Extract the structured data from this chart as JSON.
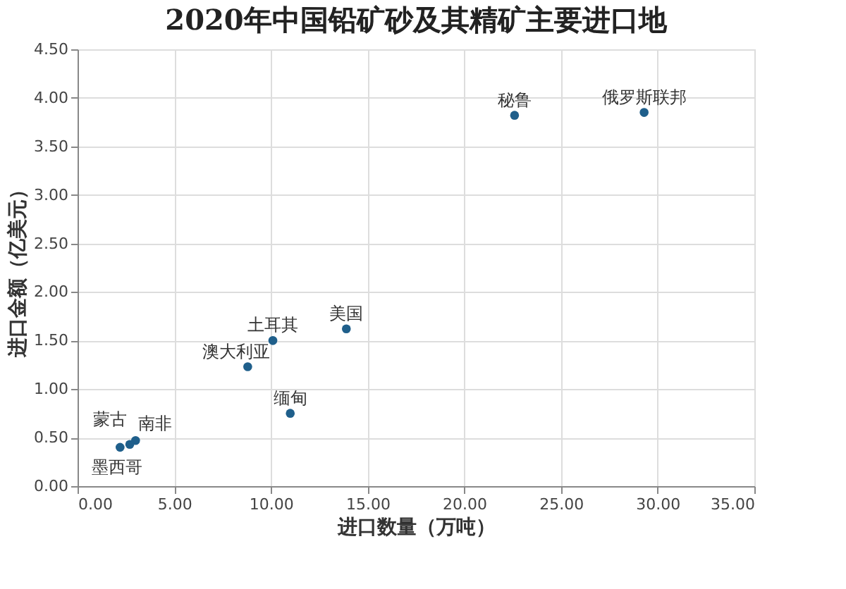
{
  "chart_data": {
    "type": "scatter",
    "title": "2020年中国铅矿砂及其精矿主要进口地",
    "xlabel": "进口数量（万吨）",
    "ylabel": "进口金额（亿美元）",
    "x": [
      29.3,
      22.6,
      13.9,
      10.1,
      8.8,
      11.0,
      3.0,
      2.7,
      2.2
    ],
    "series": [
      {
        "color": "#1f5f8b",
        "values": [
          3.85,
          3.82,
          1.62,
          1.5,
          1.23,
          0.75,
          0.47,
          0.43,
          0.4
        ]
      }
    ],
    "annotations": [
      {
        "text": "俄罗斯联邦",
        "x": 29.3,
        "y": 3.85
      },
      {
        "text": "秘鲁",
        "x": 22.6,
        "y": 3.82
      },
      {
        "text": "美国",
        "x": 13.9,
        "y": 1.62
      },
      {
        "text": "土耳其",
        "x": 10.1,
        "y": 1.5
      },
      {
        "text": "澳大利亚",
        "x": 8.8,
        "y": 1.23
      },
      {
        "text": "缅甸",
        "x": 11.0,
        "y": 0.75
      },
      {
        "text": "南非",
        "x": 3.0,
        "y": 0.47
      },
      {
        "text": "蒙古",
        "x": 2.7,
        "y": 0.43
      },
      {
        "text": "墨西哥",
        "x": 2.2,
        "y": 0.4
      }
    ],
    "xlim": [
      0,
      35
    ],
    "ylim": [
      0,
      4.5
    ],
    "xticks": [
      {
        "value": 0,
        "label": "0.00"
      },
      {
        "value": 5,
        "label": "5.00"
      },
      {
        "value": 10,
        "label": "10.00"
      },
      {
        "value": 15,
        "label": "15.00"
      },
      {
        "value": 20,
        "label": "20.00"
      },
      {
        "value": 25,
        "label": "25.00"
      },
      {
        "value": 30,
        "label": "30.00"
      },
      {
        "value": 35,
        "label": "35.00"
      }
    ],
    "yticks": [
      {
        "value": 0,
        "label": "0.00"
      },
      {
        "value": 0.5,
        "label": "0.50"
      },
      {
        "value": 1,
        "label": "1.00"
      },
      {
        "value": 1.5,
        "label": "1.50"
      },
      {
        "value": 2,
        "label": "2.00"
      },
      {
        "value": 2.5,
        "label": "2.50"
      },
      {
        "value": 3,
        "label": "3.00"
      },
      {
        "value": 3.5,
        "label": "3.50"
      },
      {
        "value": 4,
        "label": "4.00"
      },
      {
        "value": 4.5,
        "label": "4.50"
      }
    ],
    "grid": true,
    "marker": "circle"
  }
}
